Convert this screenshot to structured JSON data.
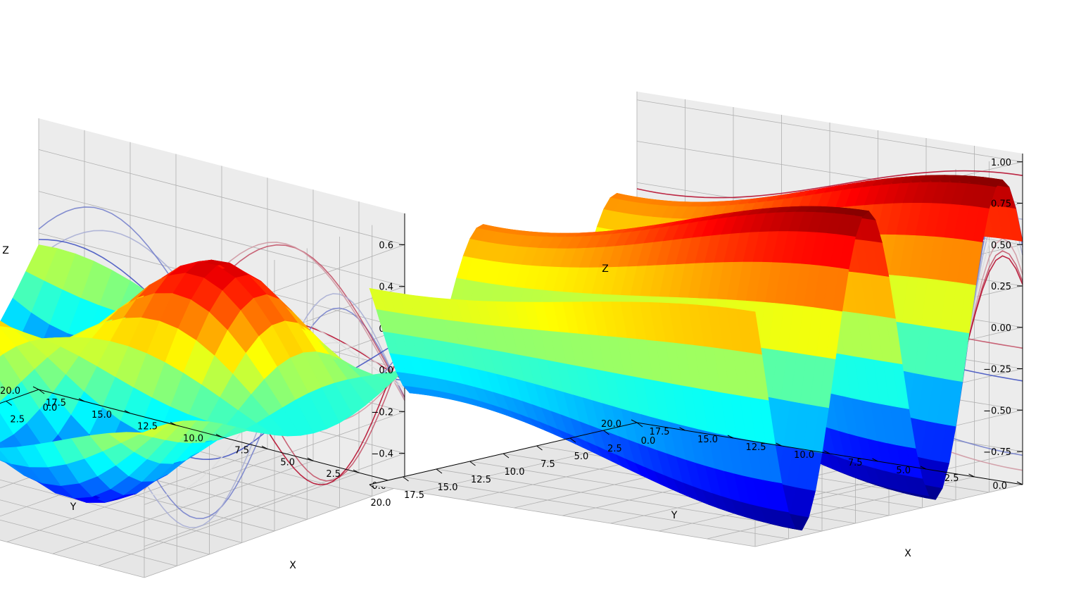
{
  "chart_data": [
    {
      "type": "surface",
      "colormap": "jet",
      "xlabel": "X",
      "ylabel": "Y",
      "zlabel": "Z",
      "xlim": [
        0,
        20
      ],
      "ylim": [
        0,
        20
      ],
      "zlim": [
        -0.55,
        0.75
      ],
      "x_ticks": [
        "0.0",
        "2.5",
        "5.0",
        "7.5",
        "10.0",
        "12.5",
        "15.0",
        "17.5",
        "20.0"
      ],
      "y_ticks": [
        "0.0",
        "2.5",
        "5.0",
        "7.5",
        "10.0",
        "12.5",
        "15.0",
        "17.5",
        "20.0"
      ],
      "z_ticks": [
        "−0.4",
        "−0.2",
        "0.0",
        "0.2",
        "0.4",
        "0.6"
      ],
      "z_tick_values": [
        -0.4,
        -0.2,
        0.0,
        0.2,
        0.4,
        0.6
      ],
      "surface": {
        "function": "0.55*sin(x/3.2)*sin(y/3.5) - 0.15*sin((x+y)/4)",
        "grid_step": 1,
        "z_min": -0.52,
        "z_max": 0.58
      },
      "contour_lines": {
        "colormap": "coolwarm",
        "projections": [
          "y-wall",
          "x-wall"
        ],
        "offset_x_wall": 0,
        "offset_y_wall": 0
      },
      "grid": true,
      "view": {
        "elev": 28,
        "azim": 58
      }
    },
    {
      "type": "surface",
      "colormap": "jet",
      "xlabel": "X",
      "ylabel": "Y",
      "zlabel": "Z",
      "xlim": [
        0,
        20
      ],
      "ylim": [
        0,
        20
      ],
      "zlim": [
        -0.95,
        1.05
      ],
      "x_ticks": [
        "0.0",
        "2.5",
        "5.0",
        "7.5",
        "10.0",
        "12.5",
        "15.0",
        "17.5",
        "20.0"
      ],
      "y_ticks": [
        "0.0",
        "2.5",
        "5.0",
        "7.5",
        "10.0",
        "12.5",
        "15.0",
        "17.5",
        "20.0"
      ],
      "z_ticks": [
        "−0.75",
        "−0.50",
        "−0.25",
        "0.00",
        "0.25",
        "0.50",
        "0.75",
        "1.00"
      ],
      "z_tick_values": [
        -0.75,
        -0.5,
        -0.25,
        0.0,
        0.25,
        0.5,
        0.75,
        1.0
      ],
      "surface": {
        "function": "0.92*sin(x/1.6) with slow variation along y",
        "grid_step": 0.5,
        "z_min": -0.92,
        "z_max": 0.92
      },
      "contour_lines": {
        "colormap": "coolwarm",
        "projections": [
          "y-wall",
          "x-wall"
        ],
        "offset_x_wall": 0,
        "offset_y_wall": 0
      },
      "grid": true,
      "view": {
        "elev": 22,
        "azim": 38
      }
    }
  ]
}
